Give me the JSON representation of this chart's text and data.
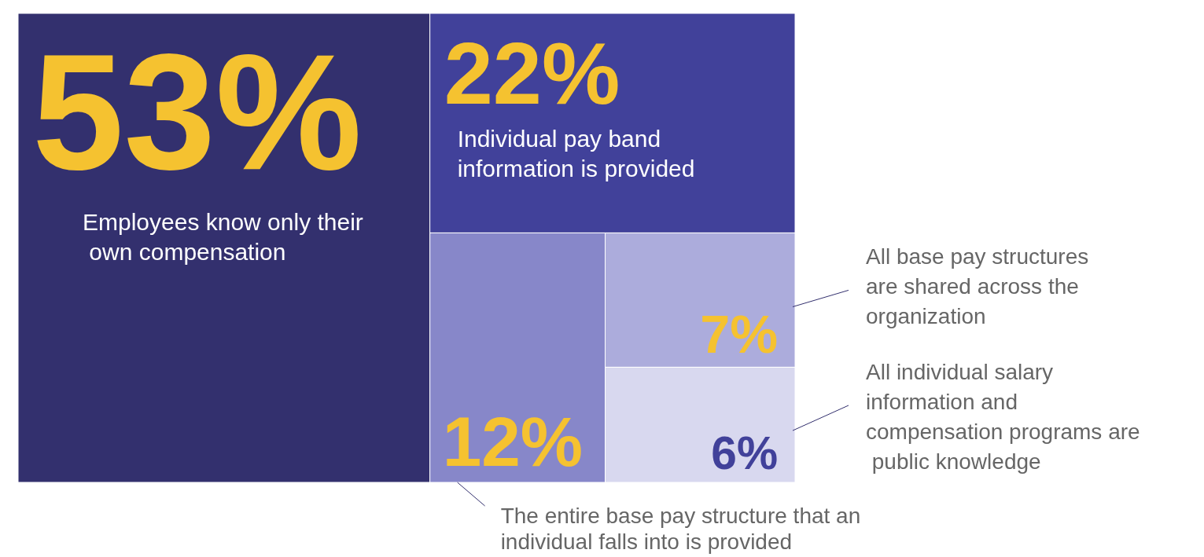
{
  "chart_data": {
    "type": "other",
    "categories": [
      "Employees know only their own compensation",
      "Individual pay band information is provided",
      "The entire base pay structure that an individual falls into is provided",
      "All base pay structures are shared across the organization",
      "All individual salary information and compensation programs are public knowledge"
    ],
    "values": [
      53,
      22,
      12,
      7,
      6
    ],
    "value_labels": [
      "53%",
      "22%",
      "12%",
      "7%",
      "6%"
    ],
    "colors": [
      "#33306e",
      "#41419a",
      "#8787c9",
      "#acacdc",
      "#d8d8ef"
    ]
  }
}
